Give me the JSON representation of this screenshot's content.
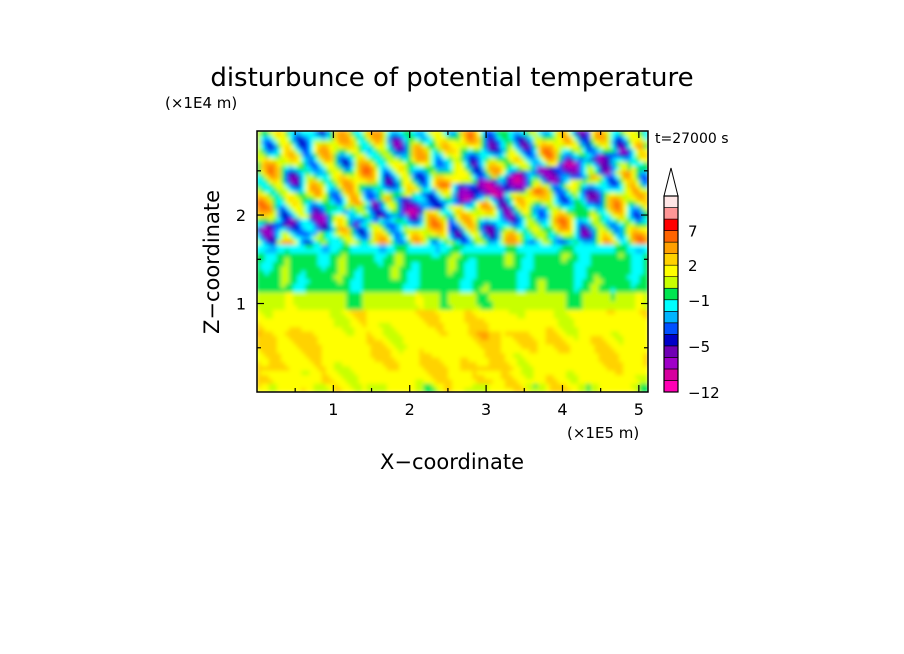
{
  "chart_data": {
    "type": "heatmap",
    "title": "disturbunce of potential temperature",
    "time_label": "t=27000 s",
    "xlabel": "X−coordinate",
    "ylabel": "Z−coordinate",
    "x_unit": "(×1E5 m)",
    "y_unit": "(×1E4 m)",
    "xlim": [
      0,
      5.12
    ],
    "ylim": [
      0,
      2.95
    ],
    "x_ticks": [
      {
        "value": 1,
        "label": "1"
      },
      {
        "value": 2,
        "label": "2"
      },
      {
        "value": 3,
        "label": "3"
      },
      {
        "value": 4,
        "label": "4"
      },
      {
        "value": 5,
        "label": "5"
      }
    ],
    "y_ticks": [
      {
        "value": 1,
        "label": "1"
      },
      {
        "value": 2,
        "label": "2"
      }
    ],
    "colorbar": {
      "extend_max": true,
      "levels": [
        -12,
        -10,
        -8,
        -6,
        -5,
        -4,
        -3,
        -2,
        -1,
        0,
        1,
        2,
        3,
        5,
        7,
        9,
        11
      ],
      "colors": [
        "#ff00b4",
        "#d6009e",
        "#a000c8",
        "#7000b4",
        "#0000c8",
        "#0050ff",
        "#00b4ff",
        "#00ffff",
        "#00e650",
        "#c8ff00",
        "#ffff00",
        "#ffd200",
        "#ffa000",
        "#ff6400",
        "#ff0000",
        "#ff9696"
      ],
      "extend_color": "#ffe6e6",
      "tick_labels": [
        {
          "value": 7,
          "label": "7"
        },
        {
          "value": 2,
          "label": "2"
        },
        {
          "value": -1,
          "label": "−1"
        },
        {
          "value": -5,
          "label": "−5"
        },
        {
          "value": -12,
          "label": "−12"
        }
      ]
    },
    "field_description": [
      {
        "z_range": [
          0.0,
          0.95
        ],
        "typical_value": 1.5,
        "note": "yellow / light orange"
      },
      {
        "z_range": [
          0.95,
          1.15
        ],
        "typical_value": 0.5,
        "note": "yellow"
      },
      {
        "z_range": [
          1.15,
          1.65
        ],
        "typical_value": -0.5,
        "note": "green"
      },
      {
        "z_range": [
          1.65,
          2.95
        ],
        "typical_value": 2.5,
        "note": "mixed blue / orange / red waves"
      }
    ]
  }
}
